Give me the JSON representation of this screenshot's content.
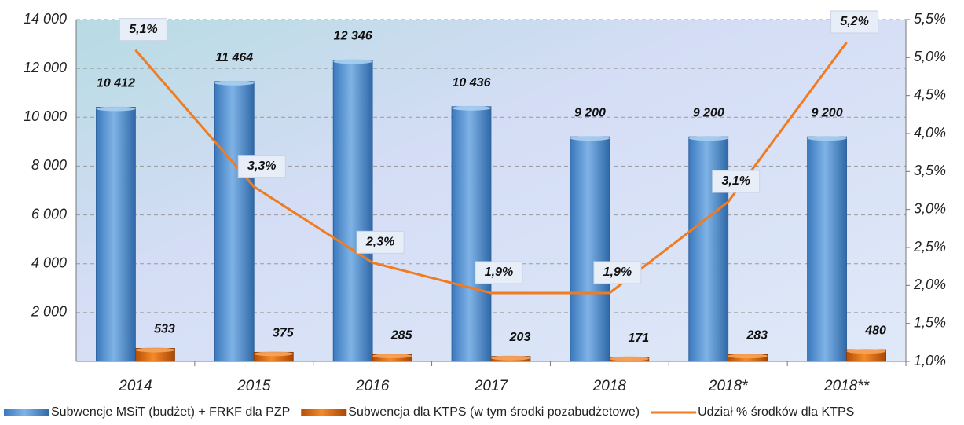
{
  "chart_data": {
    "type": "bar",
    "categories": [
      "2014",
      "2015",
      "2016",
      "2017",
      "2018",
      "2018*",
      "2018**"
    ],
    "series": [
      {
        "name": "Subwencje MSiT (budżet) + FRKF dla PZP",
        "color": "#5b9bd5",
        "type": "bar",
        "values": [
          10412,
          11464,
          12346,
          10436,
          9200,
          9200,
          9200
        ],
        "value_labels": [
          "10 412",
          "11 464",
          "12 346",
          "10 436",
          "9 200",
          "9 200",
          "9 200"
        ]
      },
      {
        "name": "Subwencja dla KTPS (w tym środki pozabudżetowe)",
        "color": "#e46c0a",
        "type": "bar",
        "values": [
          533,
          375,
          285,
          203,
          171,
          283,
          480
        ]
      },
      {
        "name": "Udział % środków dla KTPS",
        "color": "#f07b20",
        "type": "line",
        "axis": "y2",
        "values": [
          5.1,
          3.3,
          2.3,
          1.9,
          1.9,
          3.1,
          5.2
        ],
        "value_labels": [
          "5,1%",
          "3,3%",
          "2,3%",
          "1,9%",
          "1,9%",
          "3,1%",
          "5,2%"
        ]
      }
    ],
    "ylim": [
      0,
      14000
    ],
    "yticks": [
      {
        "value": 2000,
        "label": "2 000"
      },
      {
        "value": 4000,
        "label": "4 000"
      },
      {
        "value": 6000,
        "label": "6 000"
      },
      {
        "value": 8000,
        "label": "8 000"
      },
      {
        "value": 10000,
        "label": "10 000"
      },
      {
        "value": 12000,
        "label": "12 000"
      },
      {
        "value": 14000,
        "label": "14 000"
      }
    ],
    "y2lim": [
      1.0,
      5.5
    ],
    "y2ticks": [
      {
        "value": 1.0,
        "label": "1,0%"
      },
      {
        "value": 1.5,
        "label": "1,5%"
      },
      {
        "value": 2.0,
        "label": "2,0%"
      },
      {
        "value": 2.5,
        "label": "2,5%"
      },
      {
        "value": 3.0,
        "label": "3,0%"
      },
      {
        "value": 3.5,
        "label": "3,5%"
      },
      {
        "value": 4.0,
        "label": "4,0%"
      },
      {
        "value": 4.5,
        "label": "4,5%"
      },
      {
        "value": 5.0,
        "label": "5,0%"
      },
      {
        "value": 5.5,
        "label": "5,5%"
      }
    ],
    "grid": true,
    "legend": "bottom"
  }
}
